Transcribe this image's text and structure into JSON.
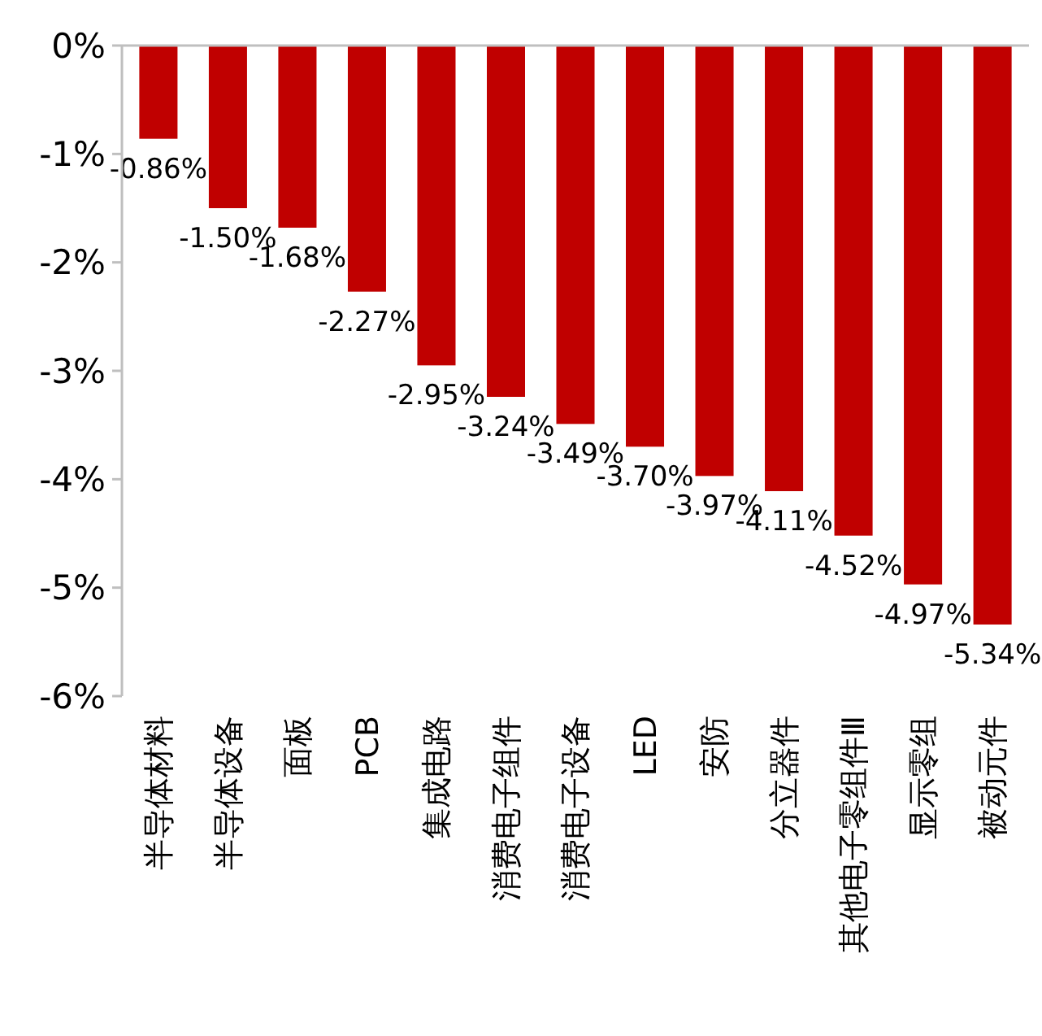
{
  "chart_data": {
    "type": "bar",
    "categories": [
      "半导体材料",
      "半导体设备",
      "面板",
      "PCB",
      "集成电路",
      "消费电子组件",
      "消费电子设备",
      "LED",
      "安防",
      "分立器件",
      "其他电子零组件Ⅲ",
      "显示零组",
      "被动元件"
    ],
    "values": [
      -0.86,
      -1.5,
      -1.68,
      -2.27,
      -2.95,
      -3.24,
      -3.49,
      -3.7,
      -3.97,
      -4.11,
      -4.52,
      -4.97,
      -5.34
    ],
    "value_labels": [
      "-0.86%",
      "-1.50%",
      "-1.68%",
      "-2.27%",
      "-2.95%",
      "-3.24%",
      "-3.49%",
      "-3.70%",
      "-3.97%",
      "-4.11%",
      "-4.52%",
      "-4.97%",
      "-5.34%"
    ],
    "color": "#c00000",
    "ylim": [
      -6,
      0
    ],
    "yticks": [
      {
        "value": 0,
        "label": "0%"
      },
      {
        "value": -1,
        "label": "-1%"
      },
      {
        "value": -2,
        "label": "-2%"
      },
      {
        "value": -3,
        "label": "-3%"
      },
      {
        "value": -4,
        "label": "-4%"
      },
      {
        "value": -5,
        "label": "-5%"
      },
      {
        "value": -6,
        "label": "-6%"
      }
    ],
    "grid": false
  }
}
